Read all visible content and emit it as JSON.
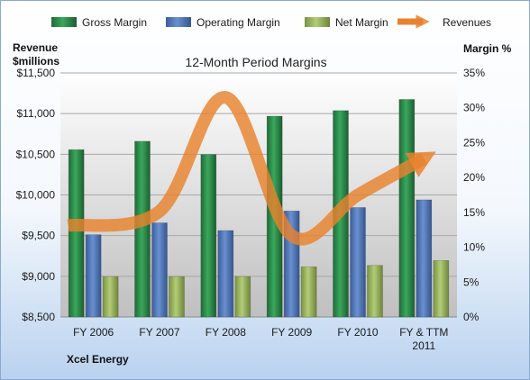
{
  "chart_data": {
    "type": "bar",
    "title": "12-Month Period Margins",
    "company": "Xcel Energy",
    "y_left_label": [
      "Revenue",
      "$millions"
    ],
    "y_right_label": "Margin %",
    "categories": [
      [
        "FY 2006"
      ],
      [
        "FY 2007"
      ],
      [
        "FY 2008"
      ],
      [
        "FY 2009"
      ],
      [
        "FY 2010"
      ],
      [
        "FY & TTM",
        "2011"
      ]
    ],
    "y_left": {
      "min": 8500,
      "max": 11500,
      "step": 500,
      "ticks": [
        "$8,500",
        "$9,000",
        "$9,500",
        "$10,000",
        "$10,500",
        "$11,000",
        "$11,500"
      ]
    },
    "y_right": {
      "min": 0,
      "max": 35,
      "step": 5,
      "ticks": [
        "0%",
        "5%",
        "10%",
        "15%",
        "20%",
        "25%",
        "30%",
        "35%"
      ]
    },
    "series": [
      {
        "name": "Gross Margin",
        "kind": "bar",
        "axis": "right",
        "color": "#2e8b4a",
        "values": [
          24,
          25.2,
          23.3,
          28.8,
          29.6,
          31.2
        ]
      },
      {
        "name": "Operating Margin",
        "kind": "bar",
        "axis": "right",
        "color": "#4f76b8",
        "values": [
          11.8,
          13.5,
          12.4,
          15.2,
          15.7,
          16.8
        ]
      },
      {
        "name": "Net Margin",
        "kind": "bar",
        "axis": "right",
        "color": "#96b45a",
        "values": [
          5.8,
          5.8,
          5.8,
          7.2,
          7.4,
          8.1
        ]
      },
      {
        "name": "Revenues",
        "kind": "line",
        "axis": "left",
        "color": "#e8822e",
        "values": [
          9625,
          9800,
          11200,
          9500,
          10000,
          10450
        ]
      }
    ],
    "legend": "top",
    "grid": true
  }
}
